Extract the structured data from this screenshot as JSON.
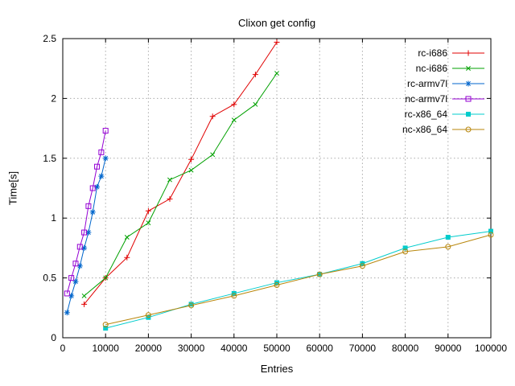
{
  "chart_data": {
    "type": "line",
    "title": "Clixon get config",
    "xlabel": "Entries",
    "ylabel": "Time[s]",
    "xlim": [
      0,
      100000
    ],
    "ylim": [
      0,
      2.5
    ],
    "grid": true,
    "legend": {
      "position": "top-right"
    },
    "colors": {
      "background": "#ffffff",
      "axis": "#000000",
      "grid": "#aaaaaa",
      "text": "#000000"
    },
    "xticks": {
      "values": [
        0,
        10000,
        20000,
        30000,
        40000,
        50000,
        60000,
        70000,
        80000,
        90000,
        100000
      ],
      "labels": [
        "0",
        "10000",
        "20000",
        "30000",
        "40000",
        "50000",
        "60000",
        "70000",
        "80000",
        "90000",
        "100000"
      ]
    },
    "yticks": {
      "values": [
        0,
        0.5,
        1,
        1.5,
        2,
        2.5
      ],
      "labels": [
        "0",
        "0.5",
        "1",
        "1.5",
        "2",
        "2.5"
      ]
    },
    "series": [
      {
        "name": "rc-i686",
        "color": "#e00000",
        "marker": "plus",
        "points": [
          [
            5000,
            0.28
          ],
          [
            10000,
            0.5
          ],
          [
            15000,
            0.67
          ],
          [
            20000,
            1.06
          ],
          [
            25000,
            1.16
          ],
          [
            30000,
            1.49
          ],
          [
            35000,
            1.85
          ],
          [
            40000,
            1.95
          ],
          [
            45000,
            2.2
          ],
          [
            50000,
            2.47
          ]
        ]
      },
      {
        "name": "nc-i686",
        "color": "#00a000",
        "marker": "cross",
        "points": [
          [
            5000,
            0.35
          ],
          [
            10000,
            0.5
          ],
          [
            15000,
            0.84
          ],
          [
            20000,
            0.96
          ],
          [
            25000,
            1.32
          ],
          [
            30000,
            1.4
          ],
          [
            35000,
            1.53
          ],
          [
            40000,
            1.82
          ],
          [
            45000,
            1.95
          ],
          [
            50000,
            2.21
          ]
        ]
      },
      {
        "name": "rc-armv7l",
        "color": "#0066cc",
        "marker": "asterisk",
        "points": [
          [
            1000,
            0.21
          ],
          [
            2000,
            0.35
          ],
          [
            3000,
            0.47
          ],
          [
            4000,
            0.6
          ],
          [
            5000,
            0.75
          ],
          [
            6000,
            0.88
          ],
          [
            7000,
            1.05
          ],
          [
            8000,
            1.26
          ],
          [
            9000,
            1.35
          ],
          [
            10000,
            1.5
          ]
        ]
      },
      {
        "name": "nc-armv7l",
        "color": "#9400d3",
        "marker": "square-open",
        "points": [
          [
            1000,
            0.37
          ],
          [
            2000,
            0.5
          ],
          [
            3000,
            0.62
          ],
          [
            4000,
            0.76
          ],
          [
            5000,
            0.88
          ],
          [
            6000,
            1.1
          ],
          [
            7000,
            1.25
          ],
          [
            8000,
            1.43
          ],
          [
            9000,
            1.55
          ],
          [
            10000,
            1.73
          ]
        ]
      },
      {
        "name": "rc-x86_64",
        "color": "#00cccc",
        "marker": "square-filled",
        "points": [
          [
            10000,
            0.08
          ],
          [
            20000,
            0.17
          ],
          [
            30000,
            0.28
          ],
          [
            40000,
            0.37
          ],
          [
            50000,
            0.46
          ],
          [
            60000,
            0.53
          ],
          [
            70000,
            0.62
          ],
          [
            80000,
            0.75
          ],
          [
            90000,
            0.84
          ],
          [
            100000,
            0.89
          ]
        ]
      },
      {
        "name": "nc-x86_64",
        "color": "#b8860b",
        "marker": "circle-open",
        "points": [
          [
            10000,
            0.11
          ],
          [
            20000,
            0.19
          ],
          [
            30000,
            0.27
          ],
          [
            40000,
            0.35
          ],
          [
            50000,
            0.44
          ],
          [
            60000,
            0.53
          ],
          [
            70000,
            0.6
          ],
          [
            80000,
            0.72
          ],
          [
            90000,
            0.76
          ],
          [
            100000,
            0.86
          ]
        ]
      }
    ]
  }
}
